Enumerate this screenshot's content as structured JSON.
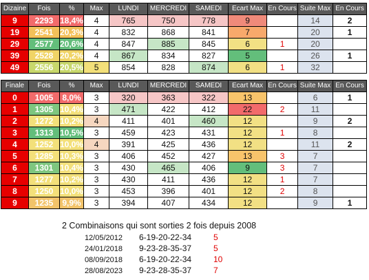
{
  "colors": {
    "header_bg": "#595959",
    "label_red": "#e60000",
    "suite_bg": "#dce3ee",
    "accent_red": "#e00000"
  },
  "dizaine": {
    "headers": [
      "Dizaine",
      "Fois",
      "%",
      "Max",
      "LUNDI",
      "MERCREDI",
      "SAMEDI",
      "Ecart Max",
      "En Cours",
      "Suite Max",
      "En Cours"
    ],
    "rows": [
      {
        "label": "9",
        "fois": "2293",
        "pct": "18,4%",
        "max": "4",
        "lundi": "765",
        "mercredi": "750",
        "samedi": "778",
        "ecart_max": "9",
        "en_cours": "",
        "suite_max": "14",
        "en_cours2": "2",
        "bg": {
          "fois": "#f26b6b",
          "pct": "#f26b6b",
          "lundi": "#f6c6c6",
          "mercredi": "#f6c6c6",
          "samedi": "#f6c6c6",
          "ecart_max": "#f08a7a"
        }
      },
      {
        "label": "19",
        "fois": "2541",
        "pct": "20,3%",
        "max": "4",
        "lundi": "832",
        "mercredi": "868",
        "samedi": "841",
        "ecart_max": "7",
        "en_cours": "",
        "suite_max": "20",
        "en_cours2": "1",
        "bg": {
          "fois": "#f3c15a",
          "pct": "#f3c15a",
          "lundi": "",
          "mercredi": "",
          "samedi": "",
          "ecart_max": "#f8a96b"
        }
      },
      {
        "label": "29",
        "fois": "2577",
        "pct": "20,6%",
        "max": "4",
        "lundi": "847",
        "mercredi": "885",
        "samedi": "845",
        "ecart_max": "6",
        "en_cours": "1",
        "suite_max": "20",
        "en_cours2": "",
        "bg": {
          "fois": "#63be7b",
          "pct": "#63be7b",
          "lundi": "",
          "mercredi": "#c6e6c6",
          "samedi": "",
          "ecart_max": "#f2e084"
        }
      },
      {
        "label": "39",
        "fois": "2528",
        "pct": "20,2%",
        "max": "4",
        "lundi": "867",
        "mercredi": "834",
        "samedi": "827",
        "ecart_max": "5",
        "en_cours": "",
        "suite_max": "26",
        "en_cours2": "1",
        "bg": {
          "fois": "#f0d466",
          "pct": "#f0d466",
          "lundi": "#c6e6c6",
          "mercredi": "",
          "samedi": "",
          "ecart_max": "#63be7b"
        }
      },
      {
        "label": "49",
        "fois": "2556",
        "pct": "20,5%",
        "max": "5",
        "lundi": "854",
        "mercredi": "828",
        "samedi": "874",
        "ecart_max": "6",
        "en_cours": "1",
        "suite_max": "32",
        "en_cours2": "",
        "bg": {
          "fois": "#c8d86c",
          "pct": "#c8d86c",
          "lundi": "",
          "mercredi": "",
          "samedi": "#c6e6c6",
          "ecart_max": "#f2e084"
        }
      }
    ]
  },
  "finale": {
    "headers": [
      "Finale",
      "Fois",
      "%",
      "Max",
      "LUNDI",
      "MERCREDI",
      "SAMEDI",
      "Ecart Max",
      "En Cours",
      "Suite Max",
      "En Cours"
    ],
    "rows": [
      {
        "label": "0",
        "fois": "1005",
        "pct": "8,0%",
        "max": "3",
        "lundi": "320",
        "mercredi": "363",
        "samedi": "322",
        "ecart_max": "13",
        "en_cours": "",
        "suite_max": "6",
        "en_cours2": "1",
        "bg": {
          "fois": "#f26b6b",
          "pct": "#f26b6b",
          "lundi": "#f6c6c6",
          "mercredi": "#f6c6c6",
          "samedi": "#f6c6c6",
          "ecart_max": "#f8c46b"
        }
      },
      {
        "label": "1",
        "fois": "1305",
        "pct": "10,4%",
        "max": "3",
        "lundi": "471",
        "mercredi": "422",
        "samedi": "412",
        "ecart_max": "22",
        "en_cours": "2",
        "suite_max": "11",
        "en_cours2": "",
        "bg": {
          "fois": "#7ec67f",
          "pct": "#f3e07a",
          "lundi": "#c6e6c6",
          "mercredi": "",
          "samedi": "",
          "ecart_max": "#f26b6b"
        }
      },
      {
        "label": "2",
        "fois": "1272",
        "pct": "10,2%",
        "max": "4",
        "lundi": "411",
        "mercredi": "401",
        "samedi": "460",
        "ecart_max": "12",
        "en_cours": "",
        "suite_max": "9",
        "en_cours2": "2",
        "bg": {
          "fois": "#f3e07a",
          "pct": "#f3e07a",
          "lundi": "",
          "mercredi": "",
          "samedi": "#c6e6c6",
          "ecart_max": "#f2e084"
        }
      },
      {
        "label": "3",
        "fois": "1313",
        "pct": "10,5%",
        "max": "3",
        "lundi": "459",
        "mercredi": "423",
        "samedi": "431",
        "ecart_max": "12",
        "en_cours": "1",
        "suite_max": "8",
        "en_cours2": "",
        "bg": {
          "fois": "#63be7b",
          "pct": "#63be7b",
          "lundi": "",
          "mercredi": "",
          "samedi": "",
          "ecart_max": "#f2e084"
        }
      },
      {
        "label": "4",
        "fois": "1252",
        "pct": "10,0%",
        "max": "4",
        "lundi": "391",
        "mercredi": "425",
        "samedi": "436",
        "ecart_max": "12",
        "en_cours": "",
        "suite_max": "11",
        "en_cours2": "2",
        "bg": {
          "fois": "#f3e07a",
          "pct": "#f3e07a",
          "lundi": "",
          "mercredi": "",
          "samedi": "",
          "ecart_max": "#f2e084"
        }
      },
      {
        "label": "5",
        "fois": "1285",
        "pct": "10,3%",
        "max": "3",
        "lundi": "406",
        "mercredi": "452",
        "samedi": "427",
        "ecart_max": "13",
        "en_cours": "3",
        "suite_max": "7",
        "en_cours2": "",
        "bg": {
          "fois": "#f3e07a",
          "pct": "#f3e07a",
          "lundi": "",
          "mercredi": "",
          "samedi": "",
          "ecart_max": "#f8c46b"
        }
      },
      {
        "label": "6",
        "fois": "1301",
        "pct": "10,4%",
        "max": "3",
        "lundi": "430",
        "mercredi": "465",
        "samedi": "406",
        "ecart_max": "9",
        "en_cours": "3",
        "suite_max": "7",
        "en_cours2": "",
        "bg": {
          "fois": "#7ec67f",
          "pct": "#f3e07a",
          "lundi": "",
          "mercredi": "#c6e6c6",
          "samedi": "",
          "ecart_max": "#63be7b"
        }
      },
      {
        "label": "7",
        "fois": "1277",
        "pct": "10,2%",
        "max": "3",
        "lundi": "430",
        "mercredi": "411",
        "samedi": "436",
        "ecart_max": "12",
        "en_cours": "1",
        "suite_max": "7",
        "en_cours2": "",
        "bg": {
          "fois": "#f3e07a",
          "pct": "#f3e07a",
          "lundi": "",
          "mercredi": "",
          "samedi": "",
          "ecart_max": "#f2e084"
        }
      },
      {
        "label": "8",
        "fois": "1250",
        "pct": "10,0%",
        "max": "3",
        "lundi": "453",
        "mercredi": "396",
        "samedi": "401",
        "ecart_max": "12",
        "en_cours": "2",
        "suite_max": "8",
        "en_cours2": "",
        "bg": {
          "fois": "#f3e07a",
          "pct": "#f3e07a",
          "lundi": "",
          "mercredi": "",
          "samedi": "",
          "ecart_max": "#f2e084"
        }
      },
      {
        "label": "9",
        "fois": "1235",
        "pct": "9,9%",
        "max": "3",
        "lundi": "394",
        "mercredi": "407",
        "samedi": "434",
        "ecart_max": "12",
        "en_cours": "",
        "suite_max": "9",
        "en_cours2": "1",
        "bg": {
          "fois": "#f2c36a",
          "pct": "#f2c36a",
          "lundi": "",
          "mercredi": "",
          "samedi": "",
          "ecart_max": "#f2e084"
        }
      }
    ]
  },
  "combinations": {
    "title": "2 Combinaisons qui sont sorties 2 fois depuis 2008",
    "rows": [
      {
        "date": "12/05/2012",
        "numbers": "6-19-20-22-34",
        "count": "5"
      },
      {
        "date": "24/01/2018",
        "numbers": "9-23-28-35-37",
        "count": "5"
      },
      {
        "date": "08/09/2018",
        "numbers": "6-19-20-22-34",
        "count": "10"
      },
      {
        "date": "28/08/2023",
        "numbers": "9-23-28-35-37",
        "count": "7"
      }
    ]
  }
}
